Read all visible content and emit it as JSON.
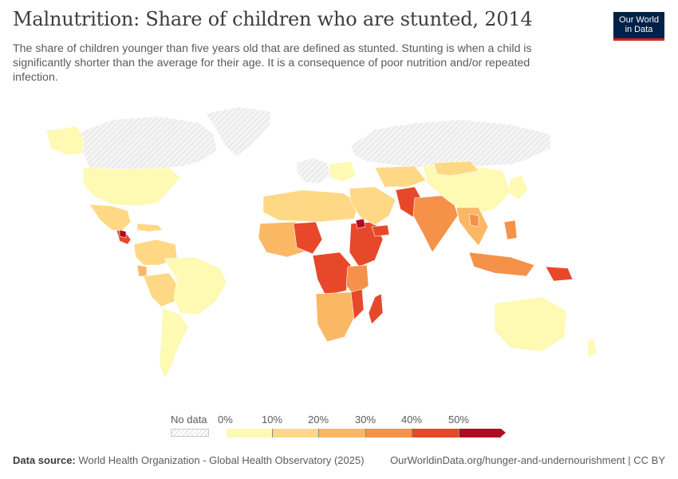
{
  "header": {
    "title": "Malnutrition: Share of children who are stunted, 2014",
    "subtitle": "The share of children younger than five years old that are defined as stunted. Stunting is when a child is significantly shorter than the average for their age. It is a consequence of poor nutrition and/or repeated infection."
  },
  "logo": {
    "line1": "Our World",
    "line2": "in Data"
  },
  "colors": {
    "no_data": "#e6e6e6",
    "bin0": "#fef9b3",
    "bin1": "#fed885",
    "bin2": "#fbb864",
    "bin3": "#f59148",
    "bin4": "#e8482a",
    "bin5": "#b20a23",
    "border": "#ffffff"
  },
  "legend": {
    "no_data_label": "No data",
    "ticks": [
      "0%",
      "10%",
      "20%",
      "30%",
      "40%",
      "50%"
    ]
  },
  "footer": {
    "source_label": "Data source:",
    "source_text": "World Health Organization - Global Health Observatory (2025)",
    "url": "OurWorldinData.org/hunger-and-undernourishment",
    "license": "| CC BY"
  }
}
